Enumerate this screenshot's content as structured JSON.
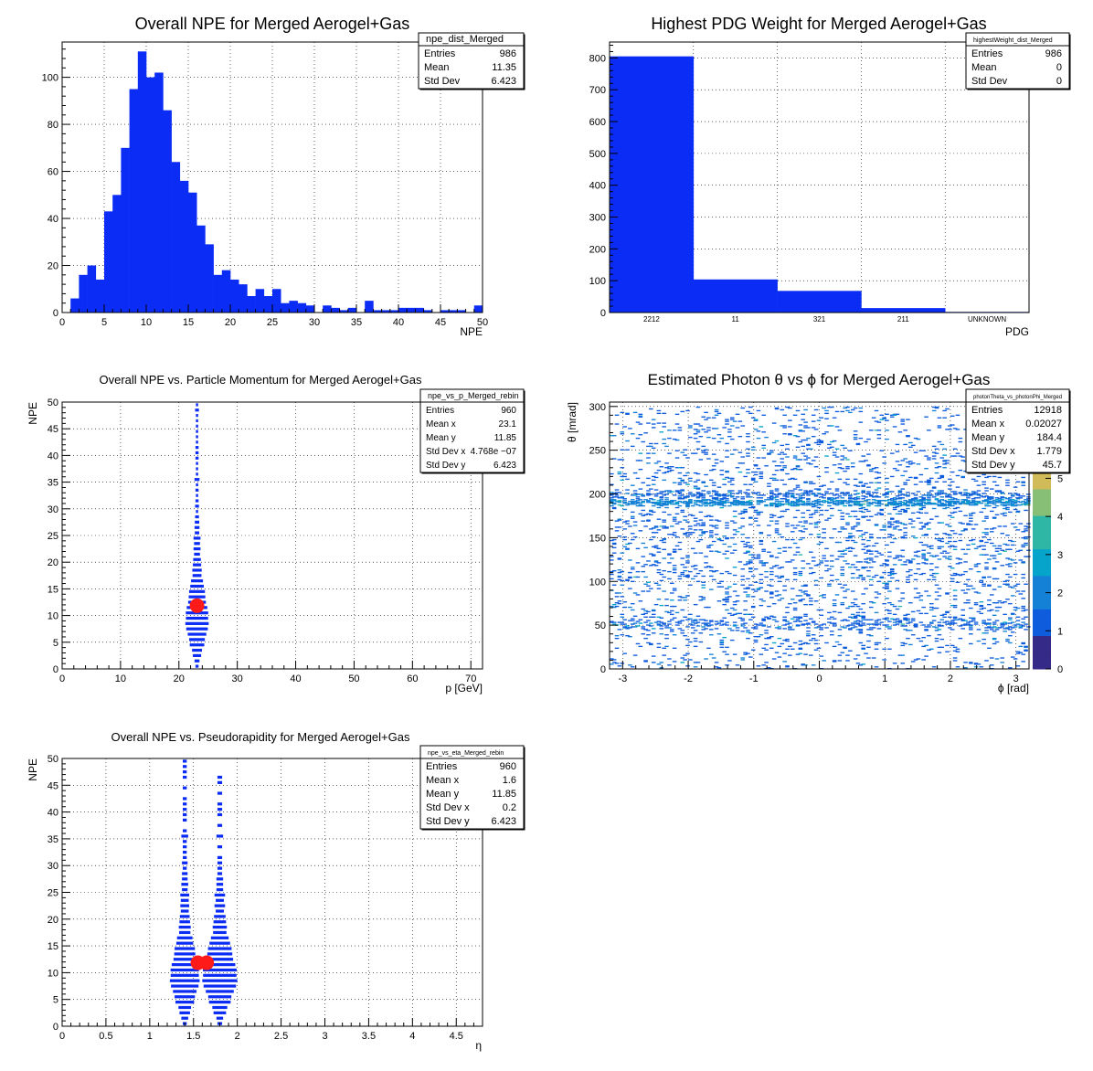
{
  "colors": {
    "hist_fill": "#0b2cf5",
    "marker": "#ff1a1a",
    "palette": [
      "#352a87",
      "#0f5cdd",
      "#1481d6",
      "#06a4ca",
      "#2eb7a4",
      "#87bf77",
      "#d1bb59",
      "#fec832",
      "#f9fb0e"
    ]
  },
  "chart_data": [
    {
      "id": "npe_dist",
      "type": "bar",
      "title": "Overall NPE for Merged Aerogel+Gas",
      "xlabel": "NPE",
      "ylabel": "",
      "xlim": [
        0,
        50
      ],
      "ylim": [
        0,
        115
      ],
      "xticks": [
        0,
        5,
        10,
        15,
        20,
        25,
        30,
        35,
        40,
        45,
        50
      ],
      "yticks": [
        0,
        20,
        40,
        60,
        80,
        100
      ],
      "bin_edges_start": 1,
      "bin_width": 1,
      "values": [
        6,
        16,
        20,
        14,
        43,
        50,
        70,
        95,
        111,
        100,
        102,
        86,
        64,
        56,
        51,
        37,
        29,
        16,
        18,
        14,
        12,
        7,
        10,
        7,
        10,
        4,
        5,
        4,
        3,
        0,
        3,
        2,
        1,
        2,
        0,
        5,
        1,
        1,
        1,
        2,
        2,
        2,
        1,
        0,
        1,
        1,
        1,
        0,
        3
      ],
      "stats": {
        "name": "npe_dist_Merged",
        "rows": [
          [
            "Entries",
            "986"
          ],
          [
            "Mean",
            "11.35"
          ],
          [
            "Std Dev",
            "6.423"
          ]
        ]
      }
    },
    {
      "id": "pdg_weight",
      "type": "bar",
      "title": "Highest PDG Weight for Merged Aerogel+Gas",
      "xlabel": "PDG",
      "ylabel": "",
      "categories": [
        "2212",
        "11",
        "321",
        "211",
        "UNKNOWN"
      ],
      "values": [
        805,
        104,
        68,
        14,
        2
      ],
      "ylim": [
        0,
        850
      ],
      "yticks": [
        0,
        100,
        200,
        300,
        400,
        500,
        600,
        700,
        800
      ],
      "stats": {
        "name": "highestWeight_dist_Merged",
        "rows": [
          [
            "Entries",
            "986"
          ],
          [
            "Mean",
            "0"
          ],
          [
            "Std Dev",
            "0"
          ]
        ]
      }
    },
    {
      "id": "npe_vs_p",
      "type": "scatter",
      "title": "Overall NPE vs. Particle Momentum for Merged Aerogel+Gas",
      "xlabel": "p [GeV]",
      "ylabel": "NPE",
      "xlim": [
        0,
        72
      ],
      "ylim": [
        0,
        50
      ],
      "xticks": [
        0,
        10,
        20,
        30,
        40,
        50,
        60,
        70
      ],
      "yticks": [
        0,
        5,
        10,
        15,
        20,
        25,
        30,
        35,
        40,
        45,
        50
      ],
      "columns": [
        {
          "x": 23.1,
          "y_counts": [
            2,
            5,
            14,
            20,
            43,
            50,
            70,
            95,
            111,
            100,
            102,
            86,
            64,
            56,
            51,
            37,
            29,
            16,
            18,
            14,
            12,
            7,
            10,
            7,
            10,
            4,
            5,
            4,
            3,
            1,
            3,
            2,
            1,
            2,
            1,
            5,
            1,
            1,
            1,
            2,
            2,
            2,
            1,
            1,
            1,
            1,
            1,
            1,
            3,
            1
          ],
          "half_width_max": 2.0
        }
      ],
      "mean_point": {
        "x": 23.1,
        "y": 11.85
      },
      "stats": {
        "name": "npe_vs_p_Merged_rebin",
        "rows": [
          [
            "Entries",
            "960"
          ],
          [
            "Mean x",
            "23.1"
          ],
          [
            "Mean y",
            "11.85"
          ],
          [
            "Std Dev x",
            "4.768e −07"
          ],
          [
            "Std Dev y",
            "6.423"
          ]
        ]
      }
    },
    {
      "id": "theta_vs_phi",
      "type": "heatmap",
      "title": "Estimated Photon θ vs ϕ for Merged Aerogel+Gas",
      "xlabel": "ϕ [rad]",
      "ylabel": "θ [mrad]",
      "xlim": [
        -3.2,
        3.2
      ],
      "ylim": [
        0,
        305
      ],
      "xticks": [
        -3,
        -2,
        -1,
        0,
        1,
        2,
        3
      ],
      "yticks": [
        0,
        50,
        100,
        150,
        200,
        250,
        300
      ],
      "zlim": [
        0,
        7
      ],
      "zticks": [
        0,
        1,
        2,
        3,
        4,
        5,
        6
      ],
      "bands": [
        {
          "theta_center": 190,
          "theta_width": 8,
          "density": 0.95,
          "level": 2
        },
        {
          "theta_center": 195,
          "theta_width": 18,
          "density": 0.45,
          "level": 1
        },
        {
          "theta_center": 52,
          "theta_width": 16,
          "density": 0.35,
          "level": 1
        },
        {
          "theta_center": 150,
          "theta_width": 300,
          "density": 0.12,
          "level": 1
        }
      ],
      "stats": {
        "name": "photonTheta_vs_photonPhi_Merged",
        "rows": [
          [
            "Entries",
            "12918"
          ],
          [
            "Mean x",
            "0.02027"
          ],
          [
            "Mean y",
            "184.4"
          ],
          [
            "Std Dev x",
            "1.779"
          ],
          [
            "Std Dev y",
            "45.7"
          ]
        ]
      }
    },
    {
      "id": "npe_vs_eta",
      "type": "scatter",
      "title": "Overall NPE vs. Pseudorapidity for Merged Aerogel+Gas",
      "xlabel": "η",
      "ylabel": "NPE",
      "xlim": [
        0,
        4.8
      ],
      "ylim": [
        0,
        50
      ],
      "xticks": [
        0,
        0.5,
        1,
        1.5,
        2,
        2.5,
        3,
        3.5,
        4,
        4.5
      ],
      "yticks": [
        0,
        5,
        10,
        15,
        20,
        25,
        30,
        35,
        40,
        45,
        50
      ],
      "columns": [
        {
          "x": 1.4,
          "y_counts": [
            1,
            3,
            7,
            10,
            22,
            26,
            35,
            48,
            56,
            50,
            51,
            43,
            32,
            28,
            26,
            18,
            15,
            8,
            9,
            7,
            6,
            4,
            5,
            4,
            5,
            2,
            3,
            2,
            2,
            1,
            2,
            1,
            1,
            1,
            1,
            3,
            1,
            0,
            1,
            1,
            1,
            1,
            1,
            0,
            1,
            0,
            1,
            1,
            1,
            1
          ],
          "half_width_max": 0.17
        },
        {
          "x": 1.8,
          "y_counts": [
            1,
            2,
            7,
            10,
            21,
            24,
            35,
            47,
            55,
            50,
            51,
            43,
            32,
            28,
            25,
            19,
            14,
            8,
            9,
            7,
            6,
            3,
            5,
            3,
            5,
            2,
            2,
            2,
            1,
            1,
            1,
            1,
            0,
            1,
            0,
            2,
            0,
            1,
            0,
            1,
            1,
            1,
            0,
            1,
            0,
            1,
            1,
            0,
            0,
            0
          ],
          "half_width_max": 0.2
        }
      ],
      "mean_points": [
        {
          "x": 1.55,
          "y": 11.85
        },
        {
          "x": 1.65,
          "y": 11.85
        }
      ],
      "stats": {
        "name": "npe_vs_eta_Merged_rebin",
        "rows": [
          [
            "Entries",
            "960"
          ],
          [
            "Mean x",
            "1.6"
          ],
          [
            "Mean y",
            "11.85"
          ],
          [
            "Std Dev x",
            "0.2"
          ],
          [
            "Std Dev y",
            "6.423"
          ]
        ]
      }
    }
  ]
}
